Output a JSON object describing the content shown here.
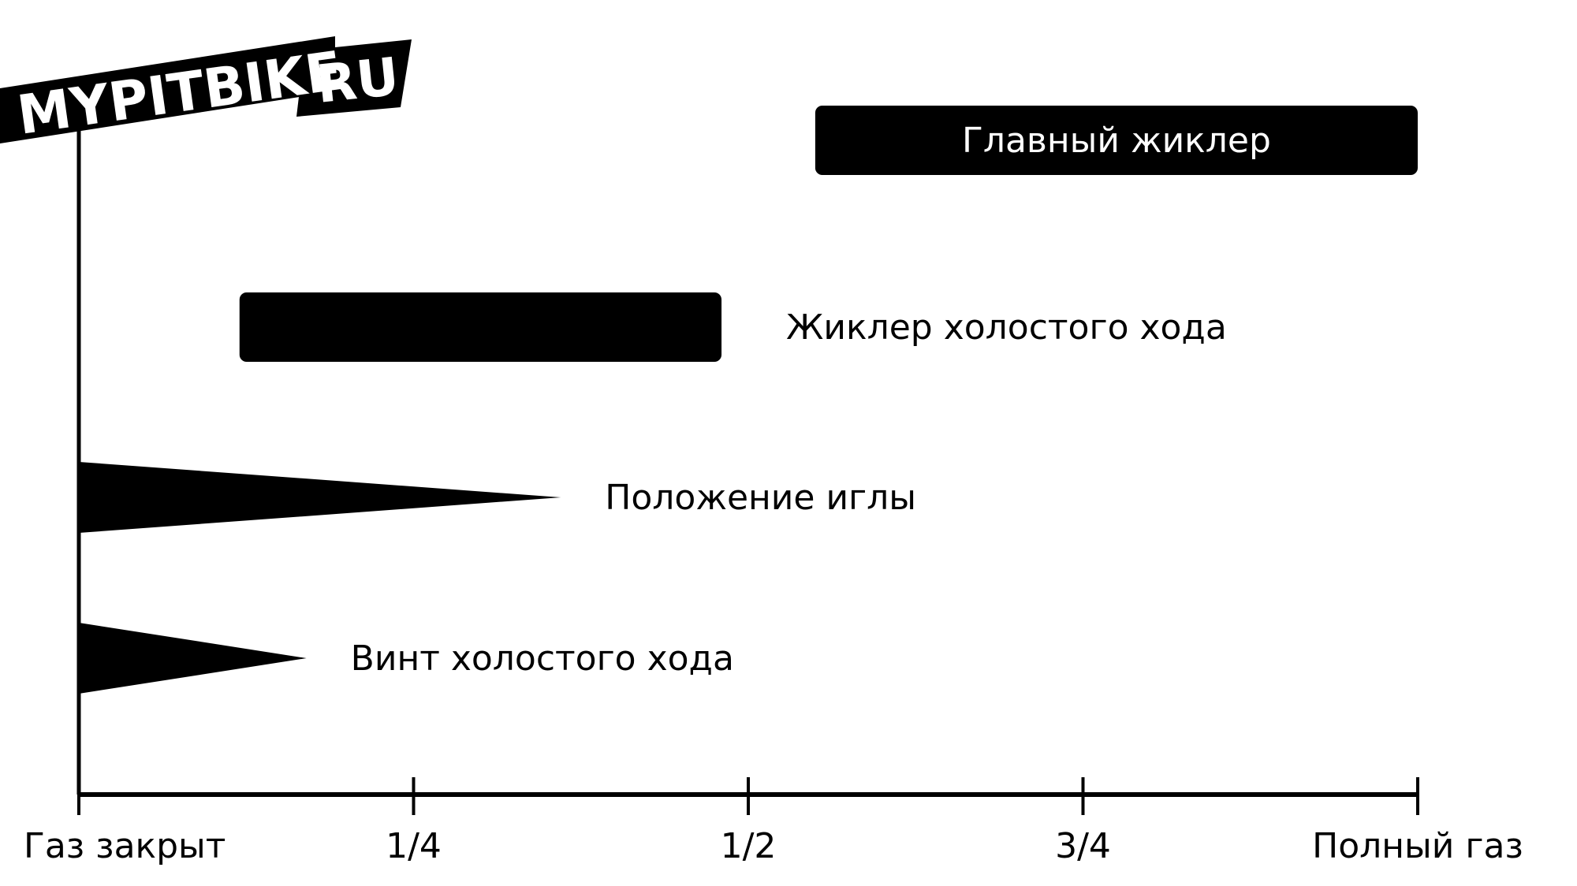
{
  "logo": {
    "main": "MYPITBIKE",
    "suffix": "RU"
  },
  "chart_data": {
    "type": "bar",
    "xlabel": "",
    "ylabel": "",
    "xlim": [
      0,
      1
    ],
    "x_ticks": [
      {
        "value": 0,
        "label": "Газ закрыт"
      },
      {
        "value": 0.25,
        "label": "1/4"
      },
      {
        "value": 0.5,
        "label": "1/2"
      },
      {
        "value": 0.75,
        "label": "3/4"
      },
      {
        "value": 1,
        "label": "Полный газ"
      }
    ],
    "series": [
      {
        "name": "Главный жиклер",
        "shape": "bar",
        "start": 0.55,
        "end": 1.0,
        "label_position": "inside"
      },
      {
        "name": "Жиклер холостого хода",
        "shape": "bar",
        "start": 0.12,
        "end": 0.48,
        "label_position": "right"
      },
      {
        "name": "Положение иглы",
        "shape": "wedge",
        "start": 0,
        "end": 0.36,
        "label_position": "right"
      },
      {
        "name": "Винт холостого хода",
        "shape": "wedge",
        "start": 0,
        "end": 0.17,
        "label_position": "right"
      }
    ],
    "colors": {
      "bar": "#000000",
      "inside_label": "#ffffff",
      "axis": "#000000",
      "background": "#ffffff"
    }
  }
}
